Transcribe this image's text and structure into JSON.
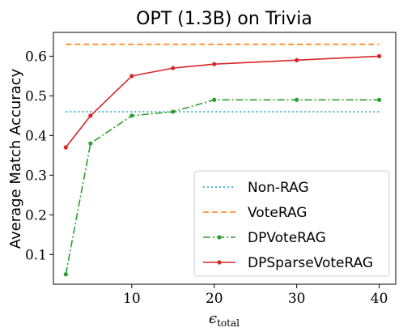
{
  "chart_data": {
    "type": "line",
    "title": "OPT (1.3B) on Trivia",
    "xlabel_main": "ϵ",
    "xlabel_sub": "total",
    "ylabel": "Average Match Accuracy",
    "xlim": [
      0.5,
      42
    ],
    "ylim": [
      0.025,
      0.66
    ],
    "xticks": [
      10,
      20,
      30,
      40
    ],
    "yticks": [
      0.1,
      0.2,
      0.3,
      0.4,
      0.5,
      0.6
    ],
    "ytick_labels": [
      "0.1",
      "0.2",
      "0.3",
      "0.4",
      "0.5",
      "0.6"
    ],
    "legend_position": "lower-right",
    "series": [
      {
        "name": "Non-RAG",
        "color": "#1f9fc4",
        "style": "dotted",
        "marker": false,
        "x": [
          2,
          40
        ],
        "values": [
          0.46,
          0.46
        ]
      },
      {
        "name": "VoteRAG",
        "color": "#ff7f0e",
        "style": "dashed",
        "marker": false,
        "x": [
          2,
          40
        ],
        "values": [
          0.63,
          0.63
        ]
      },
      {
        "name": "DPVoteRAG",
        "color": "#2ca02c",
        "style": "dashdot",
        "marker": true,
        "x": [
          2,
          5,
          10,
          15,
          20,
          30,
          40
        ],
        "values": [
          0.05,
          0.38,
          0.45,
          0.46,
          0.49,
          0.49,
          0.49
        ]
      },
      {
        "name": "DPSparseVoteRAG",
        "color": "#d62728",
        "style": "solid",
        "marker": true,
        "x": [
          2,
          5,
          10,
          15,
          20,
          30,
          40
        ],
        "values": [
          0.37,
          0.45,
          0.55,
          0.57,
          0.58,
          0.59,
          0.6
        ]
      }
    ]
  }
}
